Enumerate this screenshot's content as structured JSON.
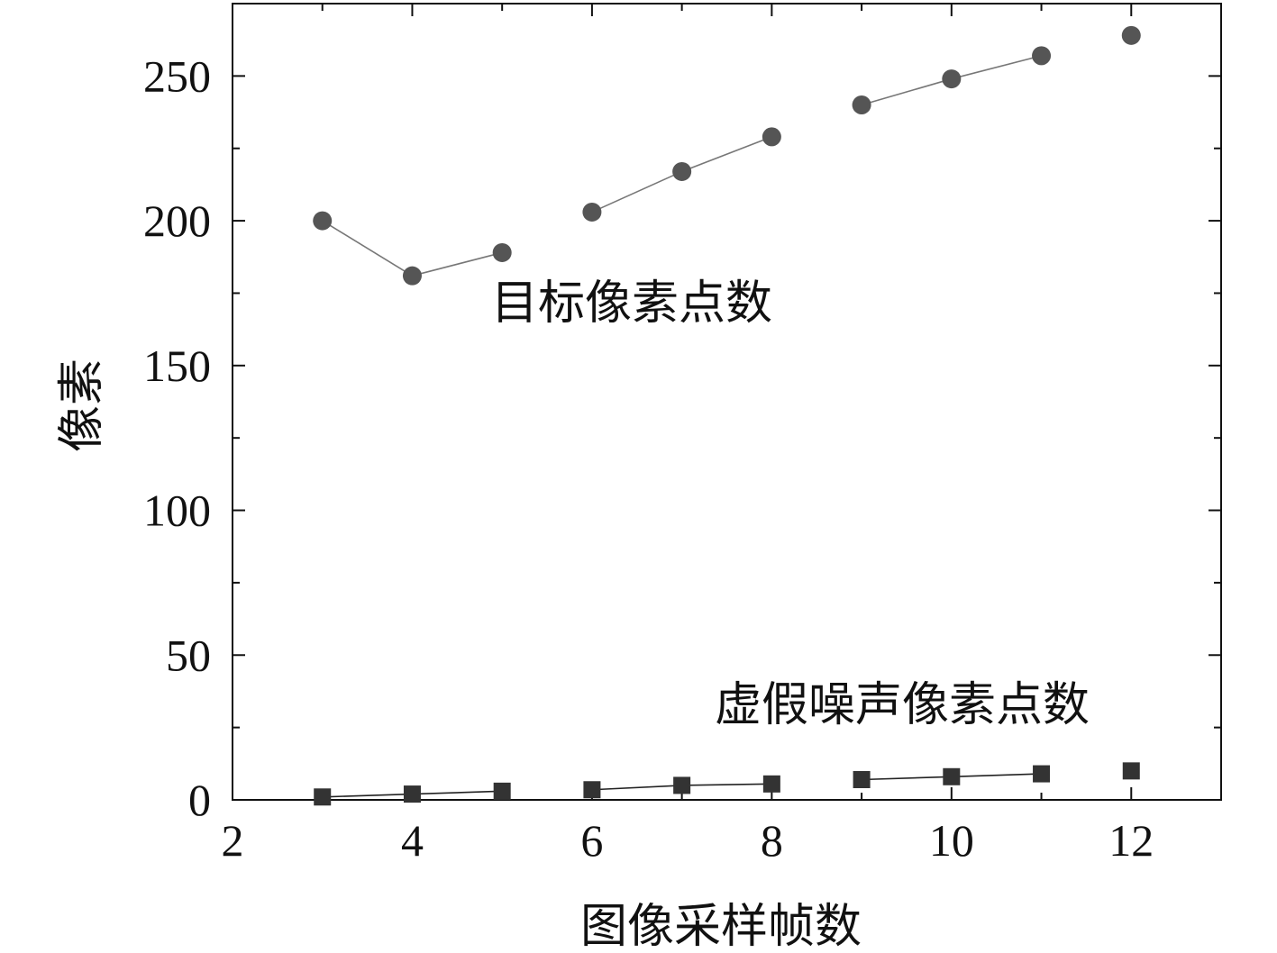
{
  "chart_data": {
    "type": "scatter",
    "title": "",
    "xlabel": "图像采样帧数",
    "ylabel": "像素",
    "xlim": [
      2,
      13
    ],
    "ylim": [
      0,
      275
    ],
    "xticks": [
      2,
      4,
      6,
      8,
      10,
      12
    ],
    "yticks": [
      0,
      50,
      100,
      150,
      200,
      250
    ],
    "grid": false,
    "legend": "none",
    "series": [
      {
        "marker": "circle",
        "color": "#555555",
        "x": [
          3,
          4,
          5,
          6,
          7,
          8,
          9,
          10,
          11,
          12
        ],
        "y": [
          200,
          181,
          189,
          203,
          217,
          229,
          240,
          249,
          257,
          264
        ],
        "segments": [
          [
            0,
            1
          ],
          [
            1,
            2
          ],
          [
            3,
            4
          ],
          [
            4,
            5
          ],
          [
            6,
            7
          ],
          [
            7,
            8
          ]
        ]
      },
      {
        "marker": "square",
        "color": "#333333",
        "x": [
          3,
          4,
          5,
          6,
          7,
          8,
          9,
          10,
          11,
          12
        ],
        "y": [
          1,
          2,
          3,
          3.5,
          5,
          5.5,
          7,
          8,
          9,
          10
        ],
        "segments": [
          [
            0,
            1
          ],
          [
            1,
            2
          ],
          [
            3,
            4
          ],
          [
            4,
            5
          ],
          [
            6,
            7
          ],
          [
            7,
            8
          ]
        ]
      }
    ],
    "annotations": [
      {
        "text": "目标像素点数",
        "series": 0
      },
      {
        "text": "虚假噪声像素点数",
        "series": 1
      }
    ]
  }
}
